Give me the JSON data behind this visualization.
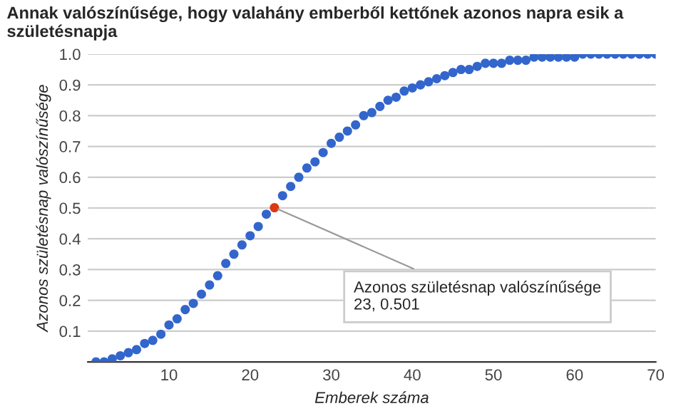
{
  "chart_data": {
    "type": "scatter",
    "title": "Annak valószínűsége, hogy valahány emberből kettőnek azonos napra esik a születésnapja",
    "xlabel": "Emberek száma",
    "ylabel": "Azonos születésnap valószínűsége",
    "x": [
      1,
      2,
      3,
      4,
      5,
      6,
      7,
      8,
      9,
      10,
      11,
      12,
      13,
      14,
      15,
      16,
      17,
      18,
      19,
      20,
      21,
      22,
      23,
      24,
      25,
      26,
      27,
      28,
      29,
      30,
      31,
      32,
      33,
      34,
      35,
      36,
      37,
      38,
      39,
      40,
      41,
      42,
      43,
      44,
      45,
      46,
      47,
      48,
      49,
      50,
      51,
      52,
      53,
      54,
      55,
      56,
      57,
      58,
      59,
      60,
      61,
      62,
      63,
      64,
      65,
      66,
      67,
      68,
      69,
      70
    ],
    "series": [
      {
        "values": [
          0.0,
          0.0,
          0.01,
          0.02,
          0.03,
          0.04,
          0.06,
          0.07,
          0.09,
          0.12,
          0.14,
          0.17,
          0.19,
          0.22,
          0.25,
          0.28,
          0.32,
          0.35,
          0.38,
          0.41,
          0.44,
          0.48,
          0.501,
          0.54,
          0.57,
          0.6,
          0.63,
          0.65,
          0.68,
          0.71,
          0.73,
          0.75,
          0.77,
          0.8,
          0.81,
          0.83,
          0.85,
          0.86,
          0.88,
          0.89,
          0.9,
          0.91,
          0.92,
          0.93,
          0.94,
          0.95,
          0.95,
          0.96,
          0.97,
          0.97,
          0.97,
          0.98,
          0.98,
          0.98,
          0.99,
          0.99,
          0.99,
          0.99,
          0.99,
          0.99,
          1.0,
          1.0,
          1.0,
          1.0,
          1.0,
          1.0,
          1.0,
          1.0,
          1.0,
          1.0
        ],
        "colors": [
          "#3366cc",
          "#3366cc",
          "#3366cc",
          "#3366cc",
          "#3366cc",
          "#3366cc",
          "#3366cc",
          "#3366cc",
          "#3366cc",
          "#3366cc",
          "#3366cc",
          "#3366cc",
          "#3366cc",
          "#3366cc",
          "#3366cc",
          "#3366cc",
          "#3366cc",
          "#3366cc",
          "#3366cc",
          "#3366cc",
          "#3366cc",
          "#3366cc",
          "#dc3912",
          "#3366cc",
          "#3366cc",
          "#3366cc",
          "#3366cc",
          "#3366cc",
          "#3366cc",
          "#3366cc",
          "#3366cc",
          "#3366cc",
          "#3366cc",
          "#3366cc",
          "#3366cc",
          "#3366cc",
          "#3366cc",
          "#3366cc",
          "#3366cc",
          "#3366cc",
          "#3366cc",
          "#3366cc",
          "#3366cc",
          "#3366cc",
          "#3366cc",
          "#3366cc",
          "#3366cc",
          "#3366cc",
          "#3366cc",
          "#3366cc",
          "#3366cc",
          "#3366cc",
          "#3366cc",
          "#3366cc",
          "#3366cc",
          "#3366cc",
          "#3366cc",
          "#3366cc",
          "#3366cc",
          "#3366cc",
          "#3366cc",
          "#3366cc",
          "#3366cc",
          "#3366cc",
          "#3366cc",
          "#3366cc",
          "#3366cc",
          "#3366cc",
          "#3366cc",
          "#3366cc"
        ]
      }
    ],
    "annotations": [
      {
        "text": "Azonos születésnap valószínűsége\n23, 0.501",
        "x": 23,
        "y": 0.501
      }
    ],
    "xlim": [
      0,
      70
    ],
    "xticks": [
      10,
      20,
      30,
      40,
      50,
      60,
      70
    ],
    "ylim": [
      0,
      1.0
    ],
    "yticks": [
      0.1,
      0.2,
      0.3,
      0.4,
      0.5,
      0.6,
      0.7,
      0.8,
      0.9,
      {
        "value": 1.0,
        "label": "1.0"
      }
    ],
    "grid": "y",
    "marker": "circle"
  }
}
